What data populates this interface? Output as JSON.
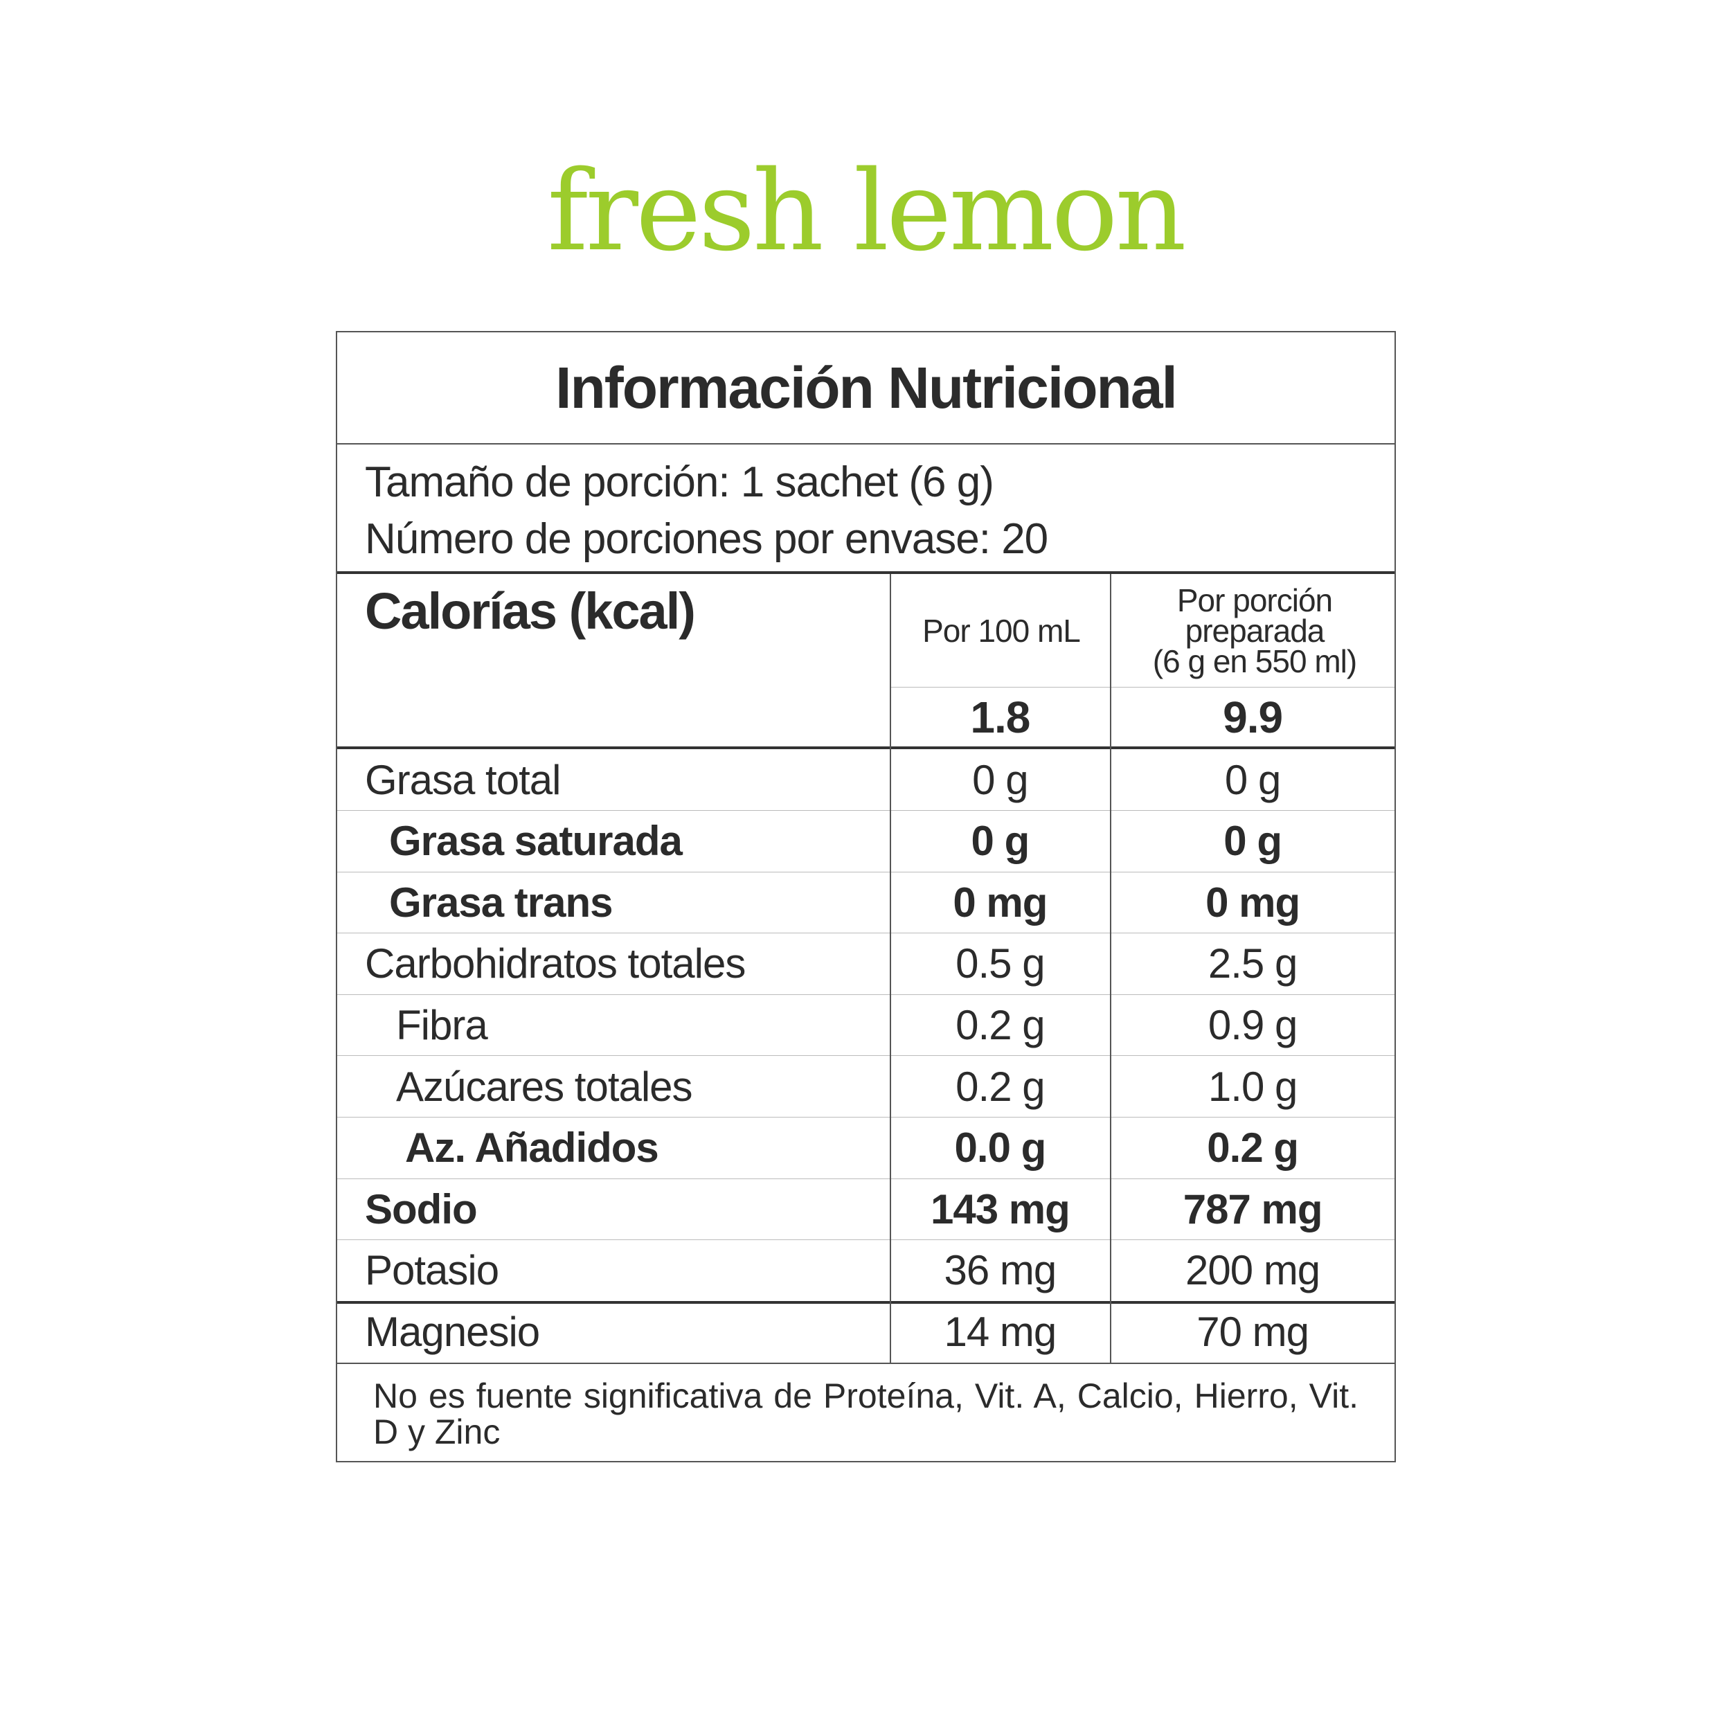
{
  "brand": {
    "name": "fresh lemon",
    "color": "#9ccc2c"
  },
  "panel": {
    "title": "Información Nutricional",
    "serving_size": "Tamaño de porción: 1 sachet (6 g)",
    "servings_per_container": "Número de porciones por envase: 20",
    "calories_label": "Calorías (kcal)",
    "col1_header": "Por 100 mL",
    "col2_header": [
      "Por porción",
      "preparada",
      "(6 g en 550 ml)"
    ],
    "calories": {
      "per100": "1.8",
      "perserving": "9.9"
    },
    "rows": [
      {
        "name": "Grasa total",
        "per100": "0 g",
        "perserving": "0 g",
        "bold": false,
        "indent": 0
      },
      {
        "name": "Grasa saturada",
        "per100": "0 g",
        "perserving": "0 g",
        "bold": true,
        "indent": 1
      },
      {
        "name": "Grasa trans",
        "per100": "0 mg",
        "perserving": "0 mg",
        "bold": true,
        "indent": 1
      },
      {
        "name": "Carbohidratos totales",
        "per100": "0.5 g",
        "perserving": "2.5 g",
        "bold": false,
        "indent": 0
      },
      {
        "name": "Fibra",
        "per100": "0.2 g",
        "perserving": "0.9 g",
        "bold": false,
        "indent": 1
      },
      {
        "name": "Azúcares totales",
        "per100": "0.2 g",
        "perserving": "1.0 g",
        "bold": false,
        "indent": 1
      },
      {
        "name": "Az. Añadidos",
        "per100": "0.0 g",
        "perserving": "0.2 g",
        "bold": true,
        "indent": 2
      },
      {
        "name": "Sodio",
        "per100": "143 mg",
        "perserving": "787 mg",
        "bold": true,
        "indent": 0
      },
      {
        "name": "Potasio",
        "per100": "36 mg",
        "perserving": "200 mg",
        "bold": false,
        "indent": 0
      },
      {
        "name": "Magnesio",
        "per100": "14 mg",
        "perserving": "70 mg",
        "bold": false,
        "indent": 0
      }
    ],
    "footnote": "No es fuente significativa de Proteína, Vit. A, Calcio, Hierro, Vit. D y Zinc"
  }
}
